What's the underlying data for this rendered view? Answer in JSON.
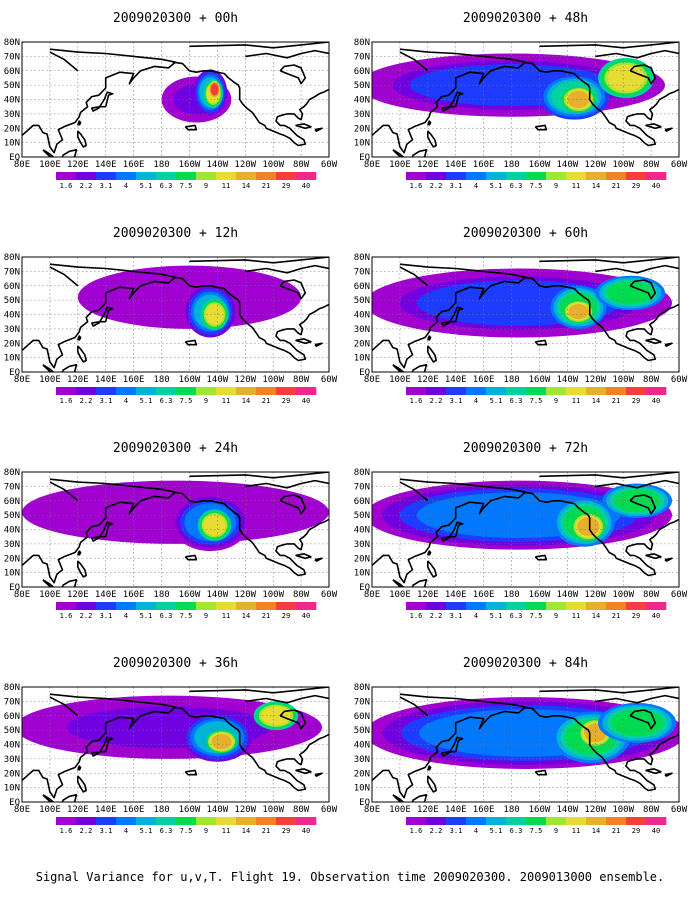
{
  "caption": "Signal Variance for u,v,T. Flight 19. Observation time 2009020300. 2009013000 ensemble.",
  "chart_data": {
    "type": "heatmap",
    "description_levels": [
      1.6,
      2.2,
      3.1,
      4,
      5.1,
      6.3,
      7.5,
      9,
      11,
      14,
      21,
      29,
      40
    ],
    "colorbar_labels": [
      "1.6",
      "2.2",
      "3.1",
      "4",
      "5.1",
      "6.3",
      "7.5",
      "9",
      "11",
      "14",
      "21",
      "29",
      "40"
    ],
    "colors": [
      "#a000d0",
      "#7000e0",
      "#1e3cff",
      "#0078ff",
      "#00b4d8",
      "#00d2a0",
      "#00dc50",
      "#a0e632",
      "#e6dc32",
      "#e6af2d",
      "#f08228",
      "#fa3c3c",
      "#f0288c"
    ],
    "xtick_labels": [
      "80E",
      "100E",
      "120E",
      "140E",
      "160E",
      "180",
      "160W",
      "140W",
      "120W",
      "100W",
      "80W",
      "60W"
    ],
    "ytick_labels": [
      "EQ",
      "10N",
      "20N",
      "30N",
      "40N",
      "50N",
      "60N",
      "70N",
      "80N"
    ],
    "lon_range": [
      80,
      300
    ],
    "lat_range": [
      0,
      80
    ],
    "grid": true,
    "panels": [
      {
        "title": "2009020300 + 00h",
        "blobs": [
          {
            "lon": 205,
            "lat": 40,
            "rlon": 25,
            "rlat": 16,
            "level": 1
          },
          {
            "lon": 215,
            "lat": 45,
            "rlon": 12,
            "rlat": 16,
            "level": 4
          },
          {
            "lon": 217,
            "lat": 44,
            "rlon": 7,
            "rlat": 10,
            "level": 8
          },
          {
            "lon": 218,
            "lat": 47,
            "rlon": 4,
            "rlat": 6,
            "level": 11
          }
        ]
      },
      {
        "title": "2009020300 + 48h",
        "blobs": [
          {
            "lon": 180,
            "lat": 50,
            "rlon": 110,
            "rlat": 22,
            "level": 2
          },
          {
            "lon": 225,
            "lat": 42,
            "rlon": 25,
            "rlat": 16,
            "level": 5
          },
          {
            "lon": 228,
            "lat": 40,
            "rlon": 12,
            "rlat": 9,
            "level": 9
          },
          {
            "lon": 262,
            "lat": 55,
            "rlon": 20,
            "rlat": 14,
            "level": 8
          }
        ]
      },
      {
        "title": "2009020300 + 12h",
        "blobs": [
          {
            "lon": 200,
            "lat": 52,
            "rlon": 80,
            "rlat": 22,
            "level": 0
          },
          {
            "lon": 215,
            "lat": 42,
            "rlon": 18,
            "rlat": 18,
            "level": 4
          },
          {
            "lon": 218,
            "lat": 40,
            "rlon": 10,
            "rlat": 11,
            "level": 8
          }
        ]
      },
      {
        "title": "2009020300 + 60h",
        "blobs": [
          {
            "lon": 185,
            "lat": 48,
            "rlon": 110,
            "rlat": 24,
            "level": 2
          },
          {
            "lon": 228,
            "lat": 45,
            "rlon": 20,
            "rlat": 15,
            "level": 6
          },
          {
            "lon": 228,
            "lat": 42,
            "rlon": 11,
            "rlat": 8,
            "level": 9
          },
          {
            "lon": 265,
            "lat": 55,
            "rlon": 25,
            "rlat": 12,
            "level": 6
          }
        ]
      },
      {
        "title": "2009020300 + 24h",
        "blobs": [
          {
            "lon": 190,
            "lat": 52,
            "rlon": 110,
            "rlat": 22,
            "level": 0
          },
          {
            "lon": 215,
            "lat": 45,
            "rlon": 28,
            "rlat": 20,
            "level": 3
          },
          {
            "lon": 218,
            "lat": 43,
            "rlon": 12,
            "rlat": 11,
            "level": 8
          }
        ]
      },
      {
        "title": "2009020300 + 72h",
        "blobs": [
          {
            "lon": 185,
            "lat": 50,
            "rlon": 110,
            "rlat": 24,
            "level": 3
          },
          {
            "lon": 232,
            "lat": 45,
            "rlon": 22,
            "rlat": 17,
            "level": 6
          },
          {
            "lon": 235,
            "lat": 42,
            "rlon": 12,
            "rlat": 10,
            "level": 9
          },
          {
            "lon": 270,
            "lat": 60,
            "rlon": 25,
            "rlat": 12,
            "level": 6
          }
        ]
      },
      {
        "title": "2009020300 + 36h",
        "blobs": [
          {
            "lon": 185,
            "lat": 52,
            "rlon": 110,
            "rlat": 22,
            "level": 1
          },
          {
            "lon": 220,
            "lat": 45,
            "rlon": 25,
            "rlat": 17,
            "level": 4
          },
          {
            "lon": 223,
            "lat": 42,
            "rlon": 11,
            "rlat": 8,
            "level": 9
          },
          {
            "lon": 262,
            "lat": 60,
            "rlon": 16,
            "rlat": 10,
            "level": 8
          }
        ]
      },
      {
        "title": "2009020300 + 84h",
        "blobs": [
          {
            "lon": 190,
            "lat": 48,
            "rlon": 115,
            "rlat": 25,
            "level": 3
          },
          {
            "lon": 237,
            "lat": 45,
            "rlon": 28,
            "rlat": 18,
            "level": 6
          },
          {
            "lon": 240,
            "lat": 48,
            "rlon": 12,
            "rlat": 10,
            "level": 9
          },
          {
            "lon": 270,
            "lat": 55,
            "rlon": 28,
            "rlat": 14,
            "level": 6
          }
        ]
      }
    ]
  }
}
